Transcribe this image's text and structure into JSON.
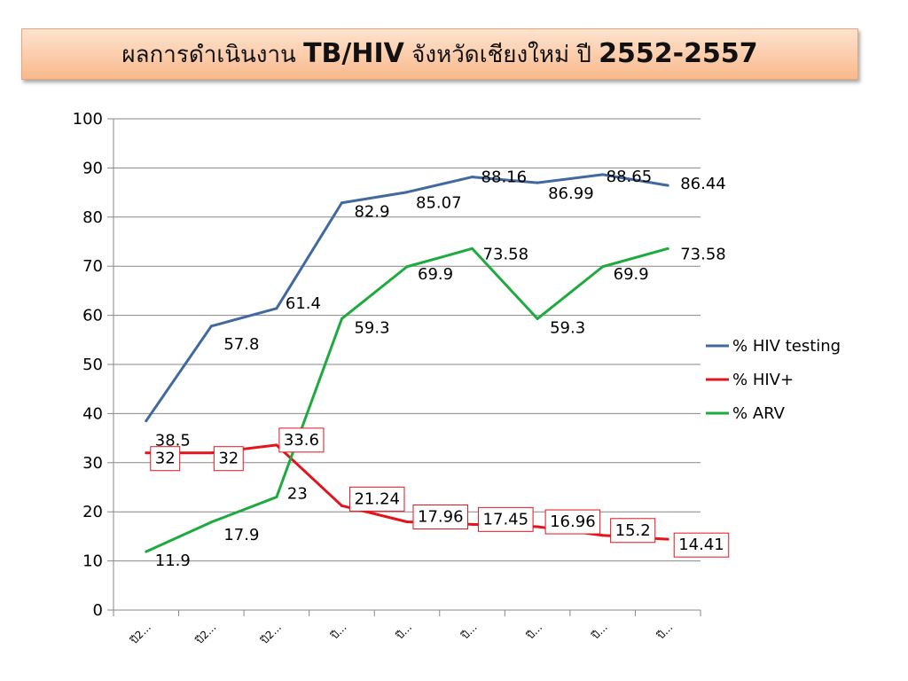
{
  "title": {
    "part1": "ผลการดำเนินงาน ",
    "part2": "TB/HIV",
    "part3": " จังหวัดเชียงใหม่ ปี ",
    "part4": "2552-2557"
  },
  "chart_data": {
    "type": "line",
    "categories": [
      "ปี2...",
      "ปี2...",
      "ปี2...",
      "ปี...",
      "ปี...",
      "ปี...",
      "ปี...",
      "ปี...",
      "ปี..."
    ],
    "ylim": [
      0,
      100
    ],
    "yticks": [
      0,
      10,
      20,
      30,
      40,
      50,
      60,
      70,
      80,
      90,
      100
    ],
    "grid": true,
    "legend_position": "right",
    "series": [
      {
        "name": "% HIV testing",
        "color": "#41699f",
        "values": [
          38.5,
          57.8,
          61.4,
          82.9,
          85.07,
          88.16,
          86.99,
          88.65,
          86.44
        ],
        "labels": [
          "38.5",
          "57.8",
          "61.4",
          "82.9",
          "85.07",
          "88.16",
          "86.99",
          "88.65",
          "86.44"
        ]
      },
      {
        "name": "% HIV+",
        "color": "#e3141b",
        "values": [
          32,
          32,
          33.6,
          21.24,
          17.96,
          17.45,
          16.96,
          15.2,
          14.41
        ],
        "labels": [
          "32",
          "32",
          "33.6",
          "21.24",
          "17.96",
          "17.45",
          "16.96",
          "15.2",
          "14.41"
        ]
      },
      {
        "name": "% ARV",
        "color": "#1eaa3f",
        "values": [
          11.9,
          17.9,
          23,
          59.3,
          69.9,
          73.58,
          59.3,
          69.9,
          73.58
        ],
        "labels": [
          "11.9",
          "17.9",
          "23",
          "59.3",
          "69.9",
          "73.58",
          "59.3",
          "69.9",
          "73.58"
        ]
      }
    ]
  }
}
